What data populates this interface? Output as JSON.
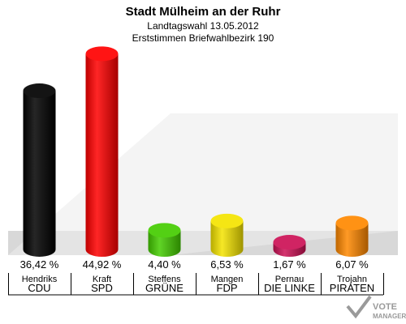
{
  "chart_data": {
    "type": "bar",
    "title": "Stadt Mülheim an der Ruhr",
    "subtitle_lines": [
      "Landtagswahl 13.05.2012",
      "Erststimmen Briefwahlbezirk 190"
    ],
    "categories": [
      "CDU",
      "SPD",
      "GRÜNE",
      "FDP",
      "DIE LINKE",
      "PIRATEN"
    ],
    "candidates": [
      "Hendriks",
      "Kraft",
      "Steffens",
      "Mangen",
      "Pernau",
      "Trojahn"
    ],
    "values": [
      36.42,
      44.92,
      4.4,
      6.53,
      1.67,
      6.07
    ],
    "value_labels": [
      "36,42 %",
      "44,92 %",
      "4,40 %",
      "6,53 %",
      "1,67 %",
      "6,07 %"
    ],
    "colors": [
      "#000000",
      "#ff0000",
      "#44cc00",
      "#f4e400",
      "#cc1155",
      "#ff8800"
    ],
    "ylim": [
      0,
      50
    ],
    "grid": false,
    "legend": "none"
  },
  "watermark": {
    "line1": "VOTE",
    "line2": "MANAGER"
  }
}
